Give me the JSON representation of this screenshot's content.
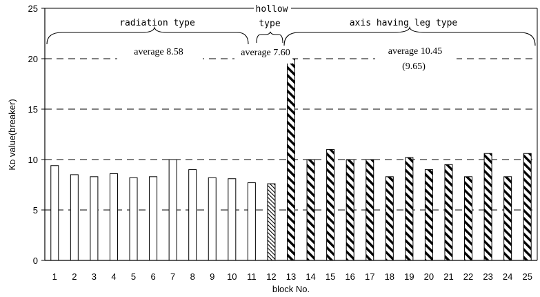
{
  "chart_data": {
    "type": "bar",
    "xlabel": "block No.",
    "ylabel_main": "K",
    "ylabel_sub": "D",
    "ylabel_rest": " value(breaker)",
    "ylim": [
      0,
      25
    ],
    "yticks": [
      "0",
      "5",
      "10",
      "15",
      "20",
      "25"
    ],
    "grid": "dashed horizontal at 5, 10, 15, 20",
    "categories": [
      "1",
      "2",
      "3",
      "4",
      "5",
      "6",
      "7",
      "8",
      "9",
      "10",
      "11",
      "12",
      "13",
      "14",
      "15",
      "16",
      "17",
      "18",
      "19",
      "20",
      "21",
      "22",
      "23",
      "24",
      "25"
    ],
    "values": [
      9.4,
      8.5,
      8.3,
      8.6,
      8.2,
      8.3,
      10.0,
      9.0,
      8.2,
      8.1,
      7.7,
      7.6,
      20.0,
      10.0,
      11.0,
      10.0,
      10.0,
      8.3,
      10.2,
      9.0,
      9.5,
      8.3,
      10.6,
      8.3,
      10.6
    ],
    "bar_styles": [
      "plain",
      "plain",
      "plain",
      "plain",
      "plain",
      "plain",
      "plain",
      "plain",
      "plain",
      "plain",
      "plain",
      "light-hatch",
      "heavy-hatch",
      "heavy-hatch",
      "heavy-hatch",
      "heavy-hatch",
      "heavy-hatch",
      "heavy-hatch",
      "heavy-hatch",
      "heavy-hatch",
      "heavy-hatch",
      "heavy-hatch",
      "heavy-hatch",
      "heavy-hatch",
      "heavy-hatch"
    ],
    "groups": [
      {
        "label": "radiation type",
        "blocks": [
          1,
          11
        ],
        "average_label": "average 8.58"
      },
      {
        "label_line1": "hollow",
        "label_line2": "type",
        "blocks": [
          12,
          12
        ],
        "average_label": "average 7.60"
      },
      {
        "label": "axis having leg type",
        "blocks": [
          13,
          25
        ],
        "average_label": "average 10.45",
        "average_sub": "(9.65)"
      }
    ],
    "colors": {
      "bar_fill": "#ffffff",
      "bar_edge": "#000000",
      "hatch": "#000000"
    }
  }
}
